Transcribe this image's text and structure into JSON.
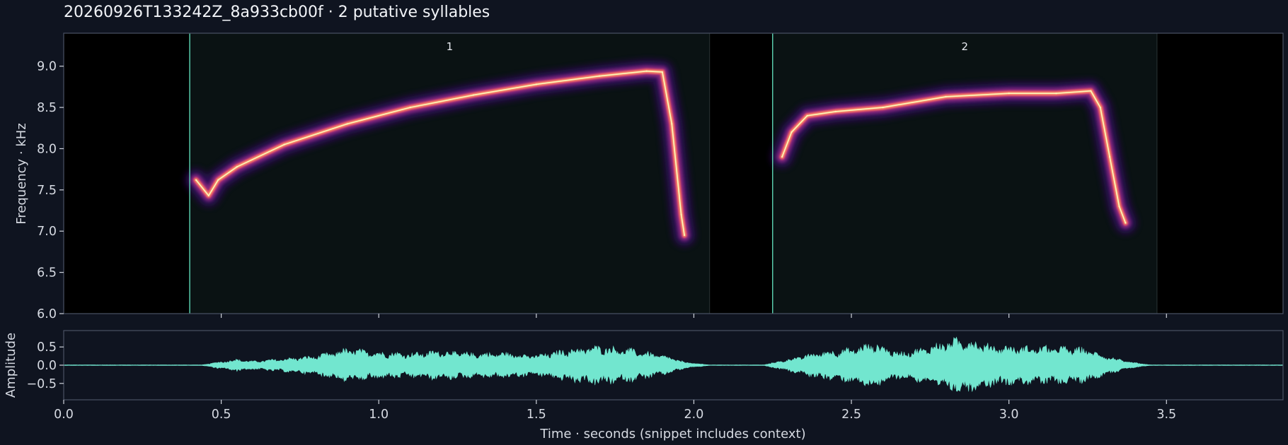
{
  "chart_data": [
    {
      "type": "heatmap",
      "title": "20260926T133242Z_8a933cb00f  ·  2 putative syllables",
      "ylabel": "Frequency · kHz",
      "xlim": [
        0.0,
        3.87
      ],
      "ylim": [
        6.0,
        9.4
      ],
      "y_ticks": [
        "6.0",
        "6.5",
        "7.0",
        "7.5",
        "8.0",
        "8.5",
        "9.0"
      ],
      "x_ticks": [
        0.5,
        1.0,
        1.5,
        2.0,
        2.5,
        3.0,
        3.5
      ],
      "colormap": [
        "#000004",
        "#3b0f70",
        "#8c2981",
        "#de4968",
        "#fe9f6d",
        "#fcfdbf"
      ],
      "masked_regions": [
        [
          0.0,
          0.4
        ],
        [
          2.05,
          2.25
        ],
        [
          3.47,
          3.87
        ]
      ],
      "syllables": [
        {
          "label": "1",
          "onset": 0.4,
          "offset": 2.05,
          "contour": [
            [
              0.42,
              7.62
            ],
            [
              0.46,
              7.43
            ],
            [
              0.49,
              7.62
            ],
            [
              0.55,
              7.78
            ],
            [
              0.7,
              8.05
            ],
            [
              0.9,
              8.3
            ],
            [
              1.1,
              8.5
            ],
            [
              1.3,
              8.65
            ],
            [
              1.5,
              8.78
            ],
            [
              1.7,
              8.88
            ],
            [
              1.85,
              8.94
            ],
            [
              1.9,
              8.93
            ],
            [
              1.93,
              8.3
            ],
            [
              1.96,
              7.2
            ],
            [
              1.97,
              6.95
            ]
          ]
        },
        {
          "label": "2",
          "onset": 2.25,
          "offset": 3.47,
          "contour": [
            [
              2.28,
              7.9
            ],
            [
              2.31,
              8.2
            ],
            [
              2.36,
              8.4
            ],
            [
              2.45,
              8.45
            ],
            [
              2.6,
              8.5
            ],
            [
              2.8,
              8.63
            ],
            [
              3.0,
              8.67
            ],
            [
              3.15,
              8.67
            ],
            [
              3.26,
              8.7
            ],
            [
              3.29,
              8.5
            ],
            [
              3.32,
              7.9
            ],
            [
              3.35,
              7.3
            ],
            [
              3.37,
              7.1
            ]
          ]
        }
      ],
      "syllable_line_color": "#5dd6b4"
    },
    {
      "type": "area",
      "ylabel": "Amplitude",
      "xlabel": "Time · seconds (snippet includes context)",
      "xlim": [
        0.0,
        3.87
      ],
      "ylim": [
        -0.95,
        0.95
      ],
      "y_ticks": [
        "0.5",
        "0.0",
        "−0.5"
      ],
      "x_tick_labels": [
        "0.0",
        "0.5",
        "1.0",
        "1.5",
        "2.0",
        "2.5",
        "3.0",
        "3.5"
      ],
      "color": "#72e6cf",
      "envelope": [
        [
          0.0,
          0.01
        ],
        [
          0.44,
          0.01
        ],
        [
          0.48,
          0.08
        ],
        [
          0.55,
          0.18
        ],
        [
          0.6,
          0.12
        ],
        [
          0.7,
          0.2
        ],
        [
          0.8,
          0.28
        ],
        [
          0.9,
          0.5
        ],
        [
          1.0,
          0.4
        ],
        [
          1.1,
          0.36
        ],
        [
          1.2,
          0.44
        ],
        [
          1.3,
          0.36
        ],
        [
          1.4,
          0.38
        ],
        [
          1.5,
          0.3
        ],
        [
          1.6,
          0.48
        ],
        [
          1.7,
          0.58
        ],
        [
          1.8,
          0.48
        ],
        [
          1.9,
          0.3
        ],
        [
          1.98,
          0.08
        ],
        [
          2.05,
          0.01
        ],
        [
          2.22,
          0.01
        ],
        [
          2.3,
          0.18
        ],
        [
          2.4,
          0.4
        ],
        [
          2.5,
          0.5
        ],
        [
          2.57,
          0.68
        ],
        [
          2.65,
          0.38
        ],
        [
          2.72,
          0.5
        ],
        [
          2.8,
          0.72
        ],
        [
          2.85,
          0.82
        ],
        [
          2.95,
          0.6
        ],
        [
          3.05,
          0.55
        ],
        [
          3.15,
          0.56
        ],
        [
          3.25,
          0.5
        ],
        [
          3.3,
          0.3
        ],
        [
          3.38,
          0.1
        ],
        [
          3.45,
          0.01
        ],
        [
          3.87,
          0.01
        ]
      ]
    }
  ]
}
